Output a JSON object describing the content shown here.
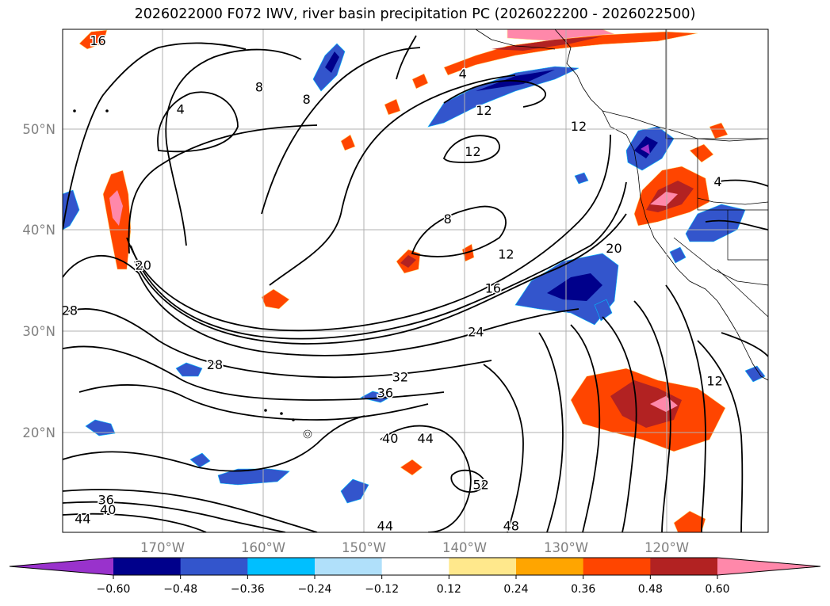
{
  "title": "2026022000 F072 IWV, river basin precipitation PC (2026022200 - 2026022500)",
  "lat_labels": [
    "50°N",
    "40°N",
    "30°N",
    "20°N"
  ],
  "lon_labels": [
    "170°W",
    "160°W",
    "150°W",
    "140°W",
    "130°W",
    "120°W"
  ],
  "colorbar": {
    "ticks": [
      "−0.60",
      "−0.48",
      "−0.36",
      "−0.24",
      "−0.12",
      "0.12",
      "0.24",
      "0.36",
      "0.48",
      "0.60"
    ],
    "colors": [
      "#9932cc",
      "#00008b",
      "#3355cc",
      "#00bfff",
      "#b0e0fa",
      "#ffffff",
      "#ffe88c",
      "#ffa500",
      "#ff4500",
      "#b22222",
      "#ff88aa"
    ]
  },
  "contour_labels": [
    {
      "text": "16",
      "lon": -176.5,
      "lat": 58.8
    },
    {
      "text": "4",
      "lon": -168.3,
      "lat": 52.0
    },
    {
      "text": "8",
      "lon": -160.5,
      "lat": 54.2
    },
    {
      "text": "8",
      "lon": -155.8,
      "lat": 53.0
    },
    {
      "text": "4",
      "lon": -140.3,
      "lat": 55.5
    },
    {
      "text": "12",
      "lon": -138.2,
      "lat": 51.9
    },
    {
      "text": "12",
      "lon": -139.3,
      "lat": 47.8
    },
    {
      "text": "12",
      "lon": -128.8,
      "lat": 50.3
    },
    {
      "text": "8",
      "lon": -141.8,
      "lat": 41.1
    },
    {
      "text": "20",
      "lon": -172.0,
      "lat": 36.5
    },
    {
      "text": "12",
      "lon": -136.0,
      "lat": 37.6
    },
    {
      "text": "16",
      "lon": -137.3,
      "lat": 34.2
    },
    {
      "text": "20",
      "lon": -125.3,
      "lat": 38.2
    },
    {
      "text": "28",
      "lon": -179.3,
      "lat": 32.0
    },
    {
      "text": "24",
      "lon": -139.0,
      "lat": 29.9
    },
    {
      "text": "28",
      "lon": -164.9,
      "lat": 26.6
    },
    {
      "text": "32",
      "lon": -146.5,
      "lat": 25.4
    },
    {
      "text": "36",
      "lon": -148.0,
      "lat": 23.8
    },
    {
      "text": "40",
      "lon": -147.5,
      "lat": 19.3
    },
    {
      "text": "44",
      "lon": -144.0,
      "lat": 19.3
    },
    {
      "text": "52",
      "lon": -138.5,
      "lat": 14.7
    },
    {
      "text": "36",
      "lon": -175.7,
      "lat": 13.2
    },
    {
      "text": "40",
      "lon": -175.5,
      "lat": 12.2
    },
    {
      "text": "44",
      "lon": -178.0,
      "lat": 11.3
    },
    {
      "text": "44",
      "lon": -148.0,
      "lat": 10.6
    },
    {
      "text": "48",
      "lon": -135.5,
      "lat": 10.6
    },
    {
      "text": "4",
      "lon": -115.0,
      "lat": 44.8
    },
    {
      "text": "12",
      "lon": -115.3,
      "lat": 25.0
    }
  ]
}
